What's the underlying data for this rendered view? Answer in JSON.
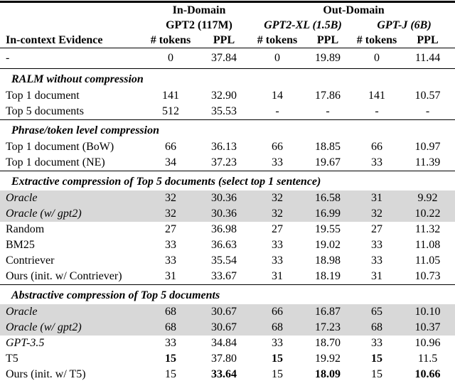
{
  "page": {
    "background_color": "#ffffff",
    "text_color": "#000000",
    "highlight_color": "#d8d8d8"
  },
  "table": {
    "header": {
      "domains": [
        {
          "label": "In-Domain",
          "span": 2
        },
        {
          "label": "Out-Domain",
          "span": 4
        }
      ],
      "models": [
        {
          "label": "GPT2 (117M)",
          "span": 2,
          "italic": false
        },
        {
          "label": "GPT2-XL (1.5B)",
          "span": 2,
          "italic": true
        },
        {
          "label": "GPT-J (6B)",
          "span": 2,
          "italic": true
        }
      ],
      "columns": [
        "In-context Evidence",
        "# tokens",
        "PPL",
        "# tokens",
        "PPL",
        "# tokens",
        "PPL"
      ]
    },
    "baseline": {
      "label": "-",
      "values": [
        "0",
        "37.84",
        "0",
        "19.89",
        "0",
        "11.44"
      ]
    },
    "sections": [
      {
        "title": "RALM without compression",
        "rows": [
          {
            "label": "Top 1 document",
            "italic": false,
            "highlight": false,
            "values": [
              "141",
              "32.90",
              "14",
              "17.86",
              "141",
              "10.57"
            ],
            "bold_values": []
          },
          {
            "label": "Top 5 documents",
            "italic": false,
            "highlight": false,
            "values": [
              "512",
              "35.53",
              "-",
              "-",
              "-",
              "-"
            ],
            "bold_values": []
          }
        ]
      },
      {
        "title": "Phrase/token level compression",
        "rows": [
          {
            "label": "Top 1 document (BoW)",
            "italic": false,
            "highlight": false,
            "values": [
              "66",
              "36.13",
              "66",
              "18.85",
              "66",
              "10.97"
            ],
            "bold_values": []
          },
          {
            "label": "Top 1 document (NE)",
            "italic": false,
            "highlight": false,
            "values": [
              "34",
              "37.23",
              "33",
              "19.67",
              "33",
              "11.39"
            ],
            "bold_values": []
          }
        ]
      },
      {
        "title": "Extractive compression of Top 5 documents (select top 1 sentence)",
        "rows": [
          {
            "label": "Oracle",
            "italic": true,
            "highlight": true,
            "values": [
              "32",
              "30.36",
              "32",
              "16.58",
              "31",
              "9.92"
            ],
            "bold_values": []
          },
          {
            "label": "Oracle (w/ gpt2)",
            "italic": true,
            "highlight": true,
            "values": [
              "32",
              "30.36",
              "32",
              "16.99",
              "32",
              "10.22"
            ],
            "bold_values": []
          },
          {
            "label": "Random",
            "italic": false,
            "highlight": false,
            "values": [
              "27",
              "36.98",
              "27",
              "19.55",
              "27",
              "11.32"
            ],
            "bold_values": []
          },
          {
            "label": "BM25",
            "italic": false,
            "highlight": false,
            "values": [
              "33",
              "36.63",
              "33",
              "19.02",
              "33",
              "11.08"
            ],
            "bold_values": []
          },
          {
            "label": "Contriever",
            "italic": false,
            "highlight": false,
            "values": [
              "33",
              "35.54",
              "33",
              "18.98",
              "33",
              "11.05"
            ],
            "bold_values": []
          },
          {
            "label": "Ours (init. w/ Contriever)",
            "italic": false,
            "highlight": false,
            "values": [
              "31",
              "33.67",
              "31",
              "18.19",
              "31",
              "10.73"
            ],
            "bold_values": []
          }
        ]
      },
      {
        "title": "Abstractive compression of Top 5 documents",
        "rows": [
          {
            "label": "Oracle",
            "italic": true,
            "highlight": true,
            "values": [
              "68",
              "30.67",
              "66",
              "16.87",
              "65",
              "10.10"
            ],
            "bold_values": []
          },
          {
            "label": "Oracle (w/ gpt2)",
            "italic": true,
            "highlight": true,
            "values": [
              "68",
              "30.67",
              "68",
              "17.23",
              "68",
              "10.37"
            ],
            "bold_values": []
          },
          {
            "label": "GPT-3.5",
            "italic": true,
            "highlight": false,
            "values": [
              "33",
              "34.84",
              "33",
              "18.70",
              "33",
              "10.96"
            ],
            "bold_values": []
          },
          {
            "label": "T5",
            "italic": false,
            "highlight": false,
            "values": [
              "15",
              "37.80",
              "15",
              "19.92",
              "15",
              "11.5"
            ],
            "bold_values": [
              0,
              2,
              4
            ]
          },
          {
            "label": "Ours (init. w/ T5)",
            "italic": false,
            "highlight": false,
            "values": [
              "15",
              "33.64",
              "15",
              "18.09",
              "15",
              "10.66"
            ],
            "bold_values": [
              1,
              3,
              5
            ]
          }
        ]
      }
    ]
  }
}
